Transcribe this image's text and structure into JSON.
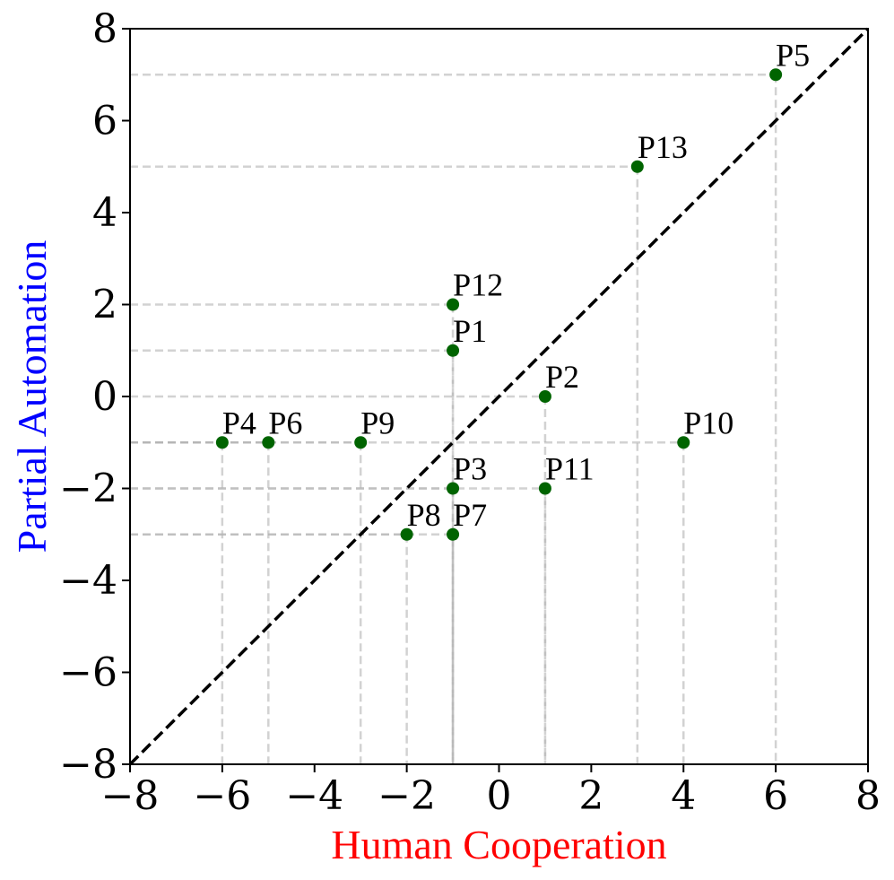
{
  "chart_data": {
    "type": "scatter",
    "xlabel": "Human Cooperation",
    "ylabel": "Partial Automation",
    "xlim": [
      -8,
      8
    ],
    "ylim": [
      -8,
      8
    ],
    "x_ticks": [
      -8,
      -6,
      -4,
      -2,
      0,
      2,
      4,
      6,
      8
    ],
    "y_ticks": [
      -8,
      -6,
      -4,
      -2,
      0,
      2,
      4,
      6,
      8
    ],
    "x_tick_labels": [
      "−8",
      "−6",
      "−4",
      "−2",
      "0",
      "2",
      "4",
      "6",
      "8"
    ],
    "y_tick_labels": [
      "−8",
      "−6",
      "−4",
      "−2",
      "0",
      "2",
      "4",
      "6",
      "8"
    ],
    "grid": false,
    "reference_line": "y = x",
    "points": [
      {
        "label": "P1",
        "x": -1,
        "y": 1
      },
      {
        "label": "P2",
        "x": 1,
        "y": 0
      },
      {
        "label": "P3",
        "x": -1,
        "y": -2
      },
      {
        "label": "P4",
        "x": -6,
        "y": -1
      },
      {
        "label": "P5",
        "x": 6,
        "y": 7
      },
      {
        "label": "P6",
        "x": -5,
        "y": -1
      },
      {
        "label": "P7",
        "x": -1,
        "y": -3
      },
      {
        "label": "P8",
        "x": -2,
        "y": -3
      },
      {
        "label": "P9",
        "x": -3,
        "y": -1
      },
      {
        "label": "P10",
        "x": 4,
        "y": -1
      },
      {
        "label": "P11",
        "x": 1,
        "y": -2
      },
      {
        "label": "P12",
        "x": -1,
        "y": 2
      },
      {
        "label": "P13",
        "x": 3,
        "y": 5
      }
    ]
  },
  "colors": {
    "point": "#006400",
    "xlabel": "#ff0000",
    "ylabel": "#0000ff",
    "guide": "#b4b4b4",
    "reference_line": "#000000"
  }
}
